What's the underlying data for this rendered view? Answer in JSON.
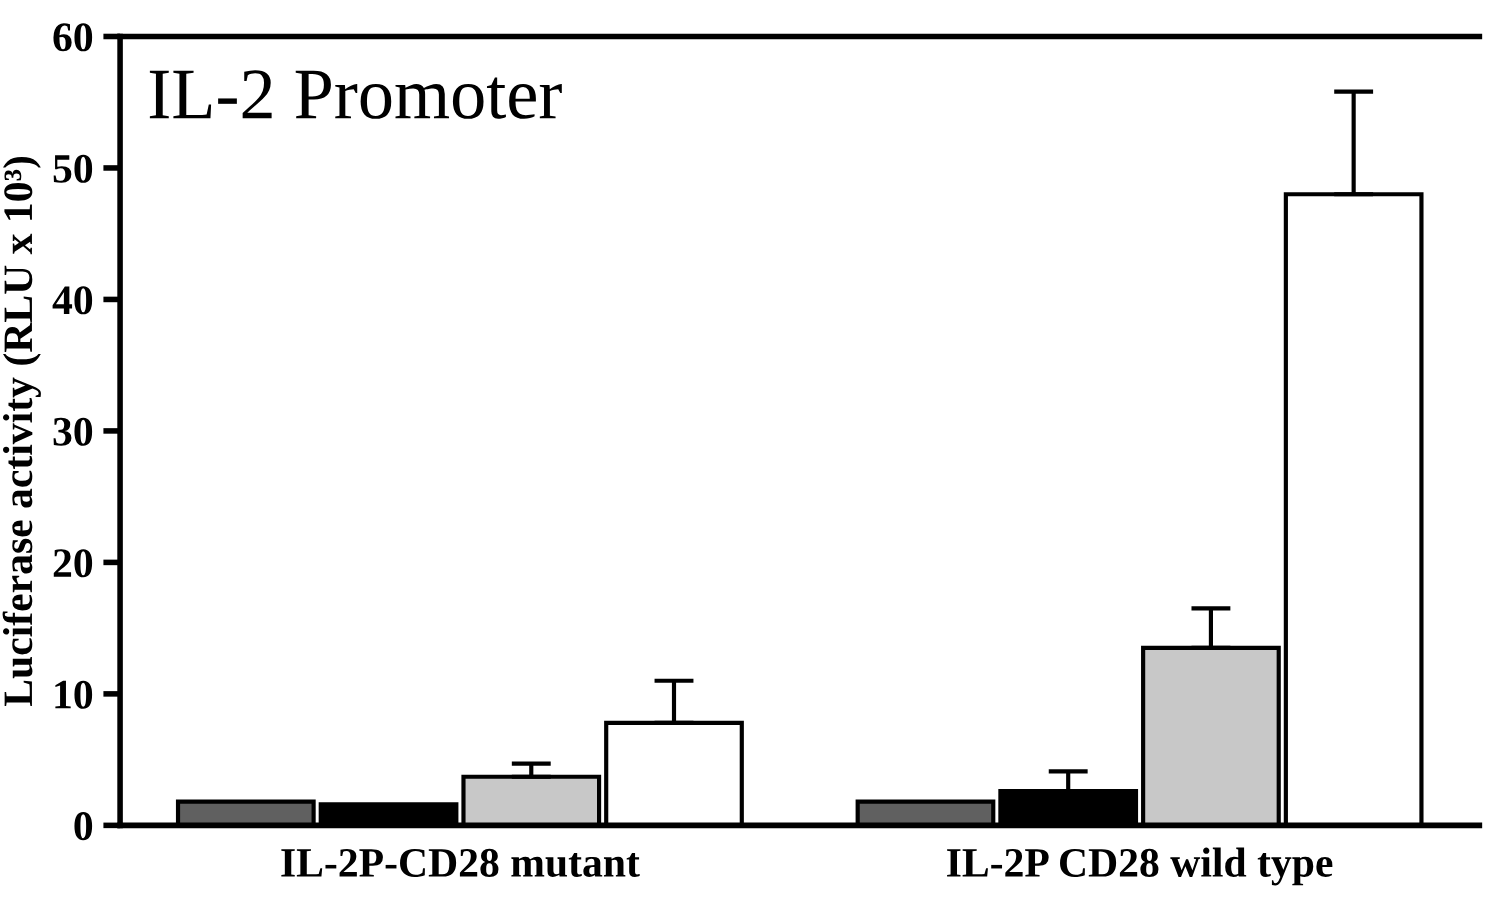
{
  "chart_data": {
    "type": "bar",
    "title": "IL-2 Promoter",
    "ylabel": "Luciferase activity (RLU x 10³)",
    "categories": [
      "IL-2P-CD28 mutant",
      "IL-2P CD28 wild type"
    ],
    "series": [
      {
        "color": "#606060",
        "values": [
          1.8,
          1.8
        ],
        "errors": [
          null,
          null
        ]
      },
      {
        "color": "#000000",
        "values": [
          1.6,
          2.6
        ],
        "errors": [
          null,
          [
            2.6,
            4.1
          ]
        ]
      },
      {
        "color": "#c8c8c8",
        "values": [
          3.7,
          13.5
        ],
        "errors": [
          [
            3.7,
            4.7
          ],
          [
            13.5,
            16.5
          ]
        ]
      },
      {
        "color": "#ffffff",
        "values": [
          7.8,
          48
        ],
        "errors": [
          [
            7.8,
            11
          ],
          [
            48,
            55.8
          ]
        ]
      }
    ],
    "ylim": [
      0,
      60
    ],
    "yticks": [
      0,
      10,
      20,
      30,
      40,
      50,
      60
    ],
    "grid": false,
    "legend": false
  }
}
